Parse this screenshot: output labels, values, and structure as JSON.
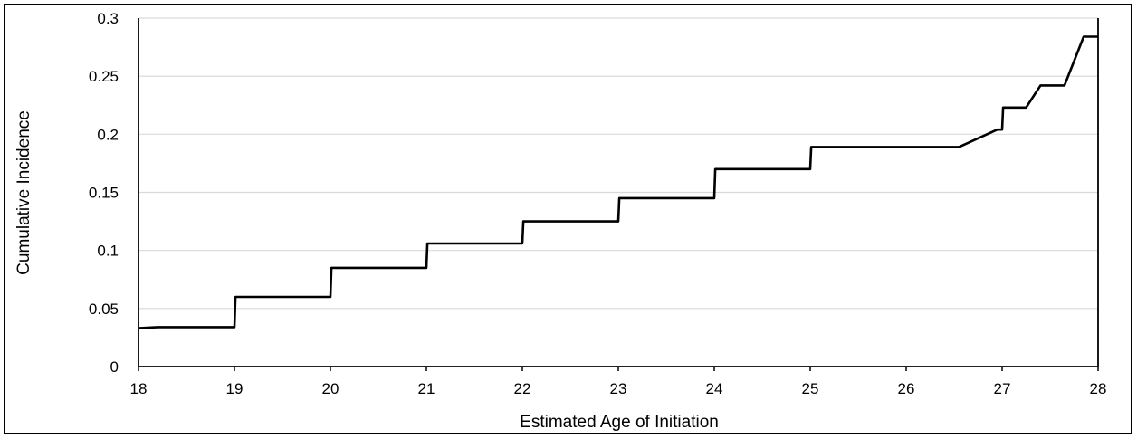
{
  "chart_data": {
    "type": "line",
    "title": "",
    "xlabel": "Estimated Age of Initiation",
    "ylabel": "Cumulative Incidence",
    "xlim": [
      18,
      28
    ],
    "ylim": [
      0,
      0.3
    ],
    "x_ticks": [
      "18",
      "19",
      "20",
      "21",
      "22",
      "23",
      "24",
      "25",
      "26",
      "27",
      "28"
    ],
    "y_ticks": [
      "0",
      "0.05",
      "0.1",
      "0.15",
      "0.2",
      "0.25",
      "0.3"
    ],
    "grid": true,
    "legend": "none",
    "line_color": "#000000",
    "series": [
      {
        "x": [
          18.0,
          18.2,
          19.0,
          19.01,
          20.0,
          20.01,
          21.0,
          21.01,
          22.0,
          22.01,
          23.0,
          23.01,
          24.0,
          24.01,
          25.0,
          25.01,
          26.55,
          26.95,
          27.0,
          27.01,
          27.25,
          27.4,
          27.65,
          27.85,
          28.0
        ],
        "y": [
          0.033,
          0.034,
          0.034,
          0.06,
          0.06,
          0.085,
          0.085,
          0.106,
          0.106,
          0.125,
          0.125,
          0.145,
          0.145,
          0.17,
          0.17,
          0.189,
          0.189,
          0.204,
          0.204,
          0.223,
          0.223,
          0.242,
          0.242,
          0.284,
          0.284
        ]
      }
    ]
  }
}
